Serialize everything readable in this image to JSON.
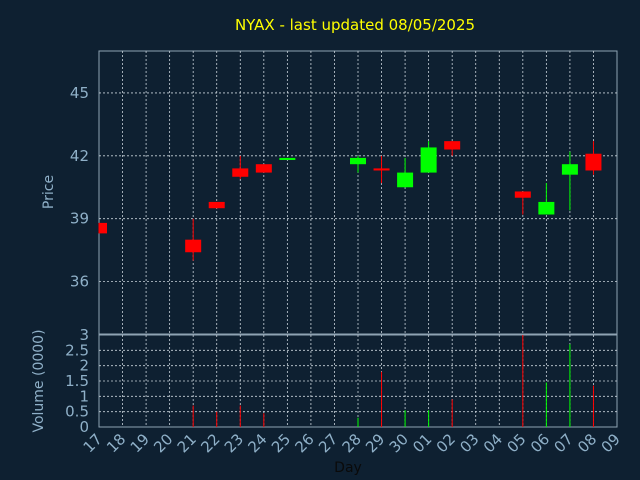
{
  "title": "NYAX - last updated 08/05/2025",
  "chart_data": [
    {
      "type": "candlestick",
      "ylabel": "Price",
      "ylim": [
        33.5,
        47
      ],
      "yticks": [
        "36",
        "39",
        "42",
        "45"
      ],
      "grid": true,
      "x": [
        "17",
        "18",
        "19",
        "20",
        "21",
        "22",
        "23",
        "24",
        "25",
        "26",
        "27",
        "28",
        "29",
        "30",
        "01",
        "02",
        "03",
        "04",
        "05",
        "06",
        "07",
        "08",
        "09"
      ],
      "colors": {
        "up": "#00ff00",
        "down": "#ff0000",
        "background": "#0e2031",
        "title": "#ffff00",
        "axis_text": "#8fb0c8"
      },
      "candles": [
        {
          "x": "17",
          "open": 38.8,
          "close": 38.3,
          "high": 38.8,
          "low": 38.3
        },
        {
          "x": "21",
          "open": 38.0,
          "close": 37.4,
          "high": 39.0,
          "low": 37.0
        },
        {
          "x": "22",
          "open": 39.8,
          "close": 39.5,
          "high": 39.8,
          "low": 39.5
        },
        {
          "x": "23",
          "open": 41.4,
          "close": 41.0,
          "high": 42.0,
          "low": 40.9
        },
        {
          "x": "24",
          "open": 41.6,
          "close": 41.2,
          "high": 41.6,
          "low": 41.2
        },
        {
          "x": "25",
          "open": 41.8,
          "close": 41.9,
          "high": 41.9,
          "low": 41.8
        },
        {
          "x": "28",
          "open": 41.6,
          "close": 41.9,
          "high": 42.0,
          "low": 41.2
        },
        {
          "x": "29",
          "open": 41.4,
          "close": 41.3,
          "high": 42.0,
          "low": 40.7
        },
        {
          "x": "30",
          "open": 40.5,
          "close": 41.2,
          "high": 41.9,
          "low": 40.5
        },
        {
          "x": "01",
          "open": 41.2,
          "close": 42.4,
          "high": 42.7,
          "low": 41.2
        },
        {
          "x": "02",
          "open": 42.7,
          "close": 42.3,
          "high": 42.7,
          "low": 42.0
        },
        {
          "x": "05",
          "open": 40.3,
          "close": 40.0,
          "high": 40.3,
          "low": 39.2
        },
        {
          "x": "06",
          "open": 39.2,
          "close": 39.8,
          "high": 40.7,
          "low": 39.2
        },
        {
          "x": "07",
          "open": 41.1,
          "close": 41.6,
          "high": 42.2,
          "low": 39.4
        },
        {
          "x": "08",
          "open": 42.1,
          "close": 41.3,
          "high": 42.7,
          "low": 41.1
        }
      ]
    },
    {
      "type": "bar",
      "ylabel": "Volume (0000)",
      "xlabel": "Day",
      "ylim": [
        0,
        3
      ],
      "yticks": [
        "0",
        "0.5",
        "1",
        "1.5",
        "2",
        "2.5",
        "3"
      ],
      "categories": [
        "17",
        "18",
        "19",
        "20",
        "21",
        "22",
        "23",
        "24",
        "25",
        "26",
        "27",
        "28",
        "29",
        "30",
        "01",
        "02",
        "03",
        "04",
        "05",
        "06",
        "07",
        "08",
        "09"
      ],
      "bars": [
        {
          "x": "21",
          "value": 0.7,
          "color": "#ff0000"
        },
        {
          "x": "22",
          "value": 0.5,
          "color": "#ff0000"
        },
        {
          "x": "23",
          "value": 0.7,
          "color": "#ff0000"
        },
        {
          "x": "24",
          "value": 0.45,
          "color": "#ff0000"
        },
        {
          "x": "28",
          "value": 0.3,
          "color": "#00ff00"
        },
        {
          "x": "29",
          "value": 1.8,
          "color": "#ff0000"
        },
        {
          "x": "30",
          "value": 0.55,
          "color": "#00ff00"
        },
        {
          "x": "01",
          "value": 0.55,
          "color": "#00ff00"
        },
        {
          "x": "02",
          "value": 0.9,
          "color": "#ff0000"
        },
        {
          "x": "05",
          "value": 3.0,
          "color": "#ff0000"
        },
        {
          "x": "06",
          "value": 1.45,
          "color": "#00ff00"
        },
        {
          "x": "07",
          "value": 2.7,
          "color": "#00ff00"
        },
        {
          "x": "08",
          "value": 1.35,
          "color": "#ff0000"
        }
      ]
    }
  ]
}
